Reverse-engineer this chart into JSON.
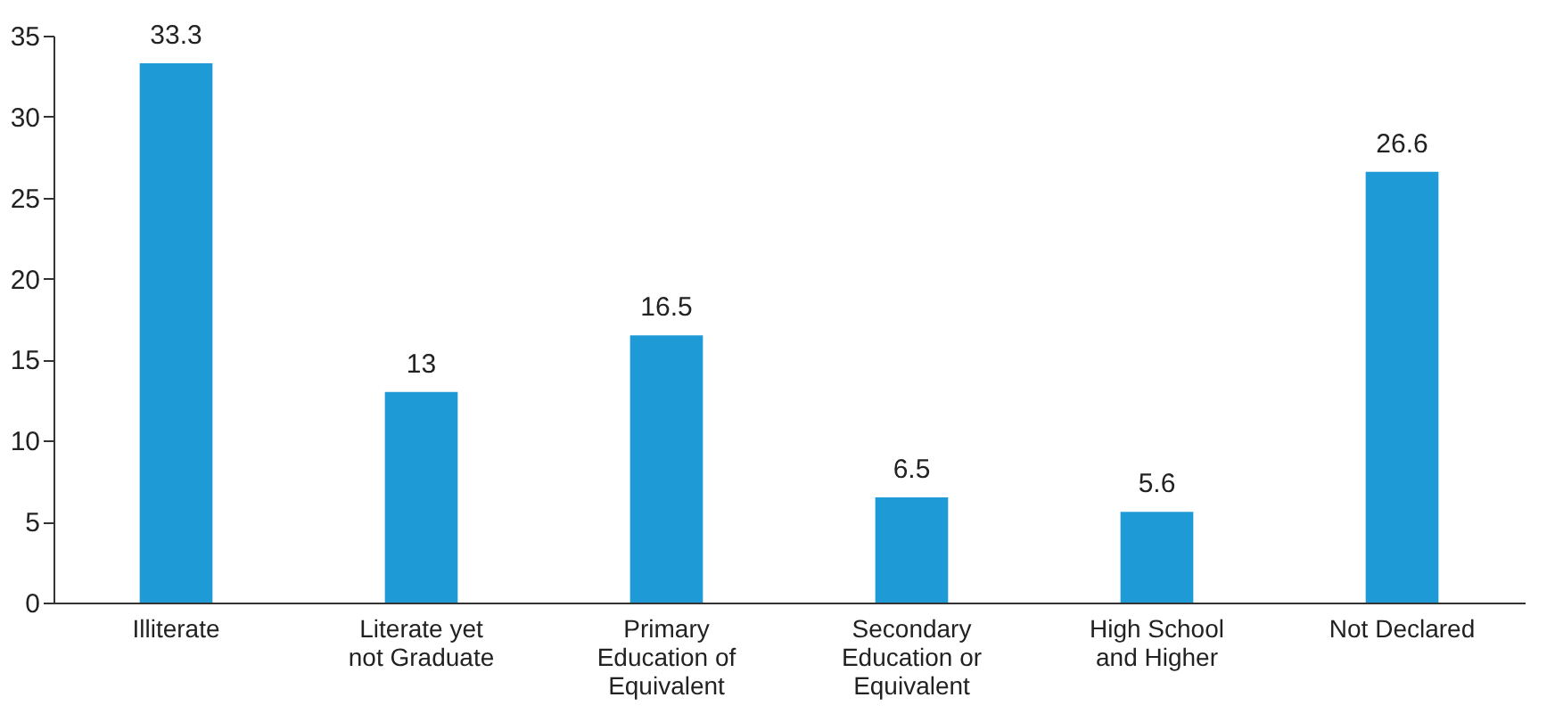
{
  "chart_data": {
    "type": "bar",
    "categories": [
      "Illiterate",
      "Literate yet not Graduate",
      "Primary Education of Equivalent",
      "Secondary Education or Equivalent",
      "High School and Higher",
      "Not Declared"
    ],
    "values": [
      33.3,
      13,
      16.5,
      6.5,
      5.6,
      26.6
    ],
    "color": "#1e9ad6",
    "ylim": [
      0,
      35
    ],
    "yticks": [
      0,
      5,
      10,
      15,
      20,
      25,
      30,
      35
    ],
    "grid": false,
    "data_labels": true
  }
}
